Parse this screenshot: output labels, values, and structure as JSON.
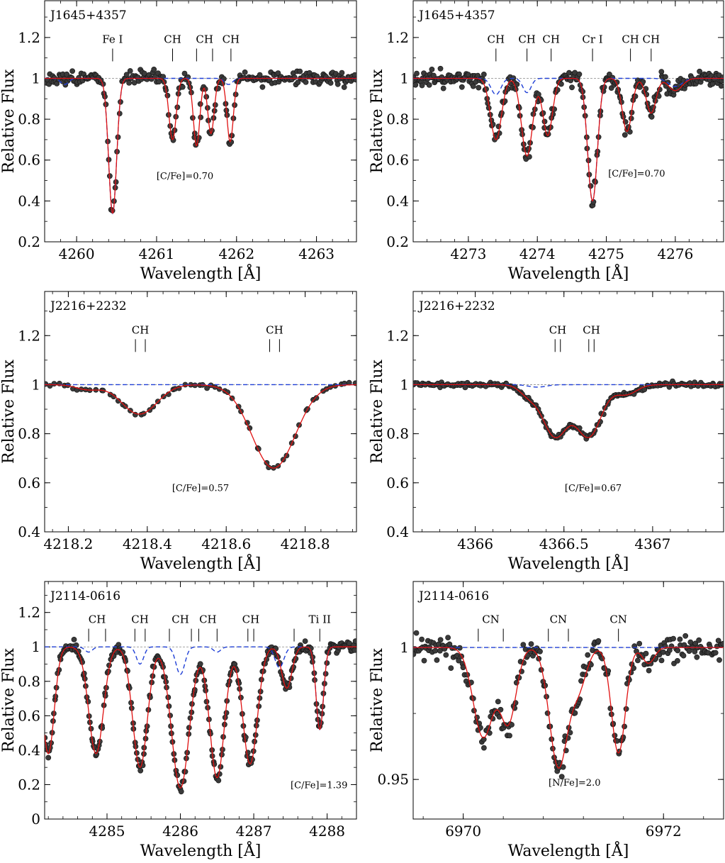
{
  "chart_data": [
    {
      "type": "line",
      "star": "J1645+4357",
      "annotation": "[C/Fe]=0.70",
      "xlabel": "Wavelength [Å]",
      "ylabel": "Relative Flux",
      "xlim": [
        4259.6,
        4263.5
      ],
      "ylim": [
        0.2,
        1.38
      ],
      "xticks": [
        4260,
        4261,
        4262,
        4263
      ],
      "xtick_labels": [
        "4260",
        "4261",
        "4262",
        "4263"
      ],
      "yticks": [
        0.2,
        0.4,
        0.6,
        0.8,
        1.0,
        1.2
      ],
      "ytick_labels": [
        "0.2",
        "0.4",
        "0.6",
        "0.8",
        "1",
        "1.2"
      ],
      "line_ids": [
        {
          "label": "Fe I",
          "marks": [
            4260.45
          ]
        },
        {
          "label": "CH",
          "marks": [
            4261.2
          ]
        },
        {
          "label": "CH",
          "marks": [
            4261.5,
            4261.7
          ]
        },
        {
          "label": "CH",
          "marks": [
            4261.93
          ]
        }
      ],
      "features": [
        {
          "c": 4260.45,
          "d": 0.66,
          "w": 0.05
        },
        {
          "c": 4261.2,
          "d": 0.3,
          "w": 0.045
        },
        {
          "c": 4261.5,
          "d": 0.33,
          "w": 0.04
        },
        {
          "c": 4261.68,
          "d": 0.27,
          "w": 0.04
        },
        {
          "c": 4261.92,
          "d": 0.31,
          "w": 0.04
        }
      ],
      "synth_blue": [
        {
          "c": 4260.45,
          "d": 0.66,
          "w": 0.05
        },
        {
          "c": 4259.85,
          "d": 0.03,
          "w": 0.05
        },
        {
          "c": 4261.9,
          "d": 0.03,
          "w": 0.05
        }
      ],
      "obs": {
        "seed": 11,
        "scatter": 0.045,
        "n": 260
      }
    },
    {
      "type": "line",
      "star": "J1645+4357",
      "annotation": "[C/Fe]=0.70",
      "xlabel": "Wavelength [Å]",
      "ylabel": "Relative Flux",
      "xlim": [
        4272.2,
        4276.7
      ],
      "ylim": [
        0.2,
        1.38
      ],
      "xticks": [
        4273,
        4274,
        4275,
        4276
      ],
      "xtick_labels": [
        "4273",
        "4274",
        "4275",
        "4276"
      ],
      "yticks": [
        0.2,
        0.4,
        0.6,
        0.8,
        1.0,
        1.2
      ],
      "ytick_labels": [
        "0.2",
        "0.4",
        "0.6",
        "0.8",
        "1",
        "1.2"
      ],
      "line_ids": [
        {
          "label": "CH",
          "marks": [
            4273.4
          ]
        },
        {
          "label": "CH",
          "marks": [
            4273.85
          ]
        },
        {
          "label": "CH",
          "marks": [
            4274.2
          ]
        },
        {
          "label": "Cr I",
          "marks": [
            4274.8
          ]
        },
        {
          "label": "CH",
          "marks": [
            4275.35
          ]
        },
        {
          "label": "CH",
          "marks": [
            4275.65
          ]
        }
      ],
      "features": [
        {
          "c": 4273.4,
          "d": 0.3,
          "w": 0.08
        },
        {
          "c": 4273.85,
          "d": 0.38,
          "w": 0.08
        },
        {
          "c": 4274.15,
          "d": 0.28,
          "w": 0.07
        },
        {
          "c": 4274.8,
          "d": 0.6,
          "w": 0.07
        },
        {
          "c": 4275.3,
          "d": 0.26,
          "w": 0.07
        },
        {
          "c": 4275.65,
          "d": 0.17,
          "w": 0.07
        },
        {
          "c": 4276.0,
          "d": 0.06,
          "w": 0.1
        }
      ],
      "synth_blue": [
        {
          "c": 4274.8,
          "d": 0.6,
          "w": 0.07
        },
        {
          "c": 4273.4,
          "d": 0.08,
          "w": 0.07
        },
        {
          "c": 4273.85,
          "d": 0.07,
          "w": 0.06
        },
        {
          "c": 4276.0,
          "d": 0.04,
          "w": 0.1
        }
      ],
      "obs": {
        "seed": 23,
        "scatter": 0.05,
        "n": 300
      }
    },
    {
      "type": "line",
      "star": "J2216+2232",
      "annotation": "[C/Fe]=0.57",
      "xlabel": "Wavelength [Å]",
      "ylabel": "Relative Flux",
      "xlim": [
        4218.14,
        4218.93
      ],
      "ylim": [
        0.4,
        1.38
      ],
      "xticks": [
        4218.2,
        4218.4,
        4218.6,
        4218.8
      ],
      "xtick_labels": [
        "4218.2",
        "4218.4",
        "4218.6",
        "4218.8"
      ],
      "yticks": [
        0.4,
        0.6,
        0.8,
        1.0,
        1.2
      ],
      "ytick_labels": [
        "0.4",
        "0.6",
        "0.8",
        "1",
        "1.2"
      ],
      "line_ids": [
        {
          "label": "CH",
          "marks": [
            4218.37,
            4218.395
          ]
        },
        {
          "label": "CH",
          "marks": [
            4218.71,
            4218.735
          ]
        }
      ],
      "features": [
        {
          "c": 4218.38,
          "d": 0.12,
          "w": 0.045
        },
        {
          "c": 4218.72,
          "d": 0.34,
          "w": 0.055
        },
        {
          "c": 4218.25,
          "d": 0.02,
          "w": 0.03
        }
      ],
      "synth_blue": [],
      "obs": {
        "seed": 5,
        "scatter": 0.012,
        "n": 70
      }
    },
    {
      "type": "line",
      "star": "J2216+2232",
      "annotation": "[C/Fe]=0.67",
      "xlabel": "Wavelength [Å]",
      "ylabel": "Relative Flux",
      "xlim": [
        4365.65,
        4367.4
      ],
      "ylim": [
        0.4,
        1.38
      ],
      "xticks": [
        4366,
        4366.5,
        4367
      ],
      "xtick_labels": [
        "4366",
        "4366.5",
        "4367"
      ],
      "yticks": [
        0.4,
        0.6,
        0.8,
        1.0,
        1.2
      ],
      "ytick_labels": [
        "0.4",
        "0.6",
        "0.8",
        "1",
        "1.2"
      ],
      "line_ids": [
        {
          "label": "CH",
          "marks": [
            4366.45,
            4366.48
          ]
        },
        {
          "label": "CH",
          "marks": [
            4366.64,
            4366.67
          ]
        }
      ],
      "features": [
        {
          "c": 4366.45,
          "d": 0.21,
          "w": 0.07
        },
        {
          "c": 4366.64,
          "d": 0.21,
          "w": 0.07
        },
        {
          "c": 4366.3,
          "d": 0.04,
          "w": 0.05
        },
        {
          "c": 4366.85,
          "d": 0.04,
          "w": 0.06
        }
      ],
      "synth_blue": [
        {
          "c": 4366.35,
          "d": 0.01,
          "w": 0.05
        }
      ],
      "obs": {
        "seed": 41,
        "scatter": 0.012,
        "n": 180
      }
    },
    {
      "type": "line",
      "star": "J2114-0616",
      "annotation": "[C/Fe]=1.39",
      "xlabel": "Wavelength [Å]",
      "ylabel": "Relative Flux",
      "xlim": [
        4284.15,
        4288.4
      ],
      "ylim": [
        0.0,
        1.38
      ],
      "xticks": [
        4285,
        4286,
        4287,
        4288
      ],
      "xtick_labels": [
        "4285",
        "4286",
        "4287",
        "4288"
      ],
      "yticks": [
        0.0,
        0.2,
        0.4,
        0.6,
        0.8,
        1.0,
        1.2
      ],
      "ytick_labels": [
        "0",
        "0.2",
        "0.4",
        "0.6",
        "0.8",
        "1",
        "1.2"
      ],
      "line_ids": [
        {
          "label": "CH",
          "marks": [
            4284.75,
            4284.98
          ]
        },
        {
          "label": "CH",
          "marks": [
            4285.38,
            4285.52
          ]
        },
        {
          "label": "CH",
          "marks": [
            4285.85,
            4286.15
          ]
        },
        {
          "label": "CH",
          "marks": [
            4286.25,
            4286.5
          ]
        },
        {
          "label": "CH",
          "marks": [
            4286.92,
            4287.0
          ]
        },
        {
          "label": "",
          "marks": [
            4287.55
          ]
        },
        {
          "label": "Ti II",
          "marks": [
            4287.9
          ]
        }
      ],
      "features": [
        {
          "c": 4284.2,
          "d": 0.62,
          "w": 0.08
        },
        {
          "c": 4284.85,
          "d": 0.62,
          "w": 0.1
        },
        {
          "c": 4285.45,
          "d": 0.7,
          "w": 0.1
        },
        {
          "c": 4286.0,
          "d": 0.82,
          "w": 0.12
        },
        {
          "c": 4286.5,
          "d": 0.76,
          "w": 0.1
        },
        {
          "c": 4286.95,
          "d": 0.68,
          "w": 0.1
        },
        {
          "c": 4287.45,
          "d": 0.24,
          "w": 0.07
        },
        {
          "c": 4287.9,
          "d": 0.48,
          "w": 0.05
        }
      ],
      "synth_blue": [
        {
          "c": 4285.45,
          "d": 0.1,
          "w": 0.05
        },
        {
          "c": 4286.0,
          "d": 0.16,
          "w": 0.06
        },
        {
          "c": 4287.35,
          "d": 0.12,
          "w": 0.06
        },
        {
          "c": 4287.9,
          "d": 0.48,
          "w": 0.05
        },
        {
          "c": 4284.75,
          "d": 0.03,
          "w": 0.05
        },
        {
          "c": 4286.5,
          "d": 0.03,
          "w": 0.05
        }
      ],
      "obs": {
        "seed": 77,
        "scatter": 0.04,
        "n": 320
      }
    },
    {
      "type": "line",
      "star": "J2114-0616",
      "annotation": "[N/Fe]=2.0",
      "xlabel": "Wavelength [Å]",
      "ylabel": "Relative Flux",
      "xlim": [
        6969.5,
        6972.6
      ],
      "ylim": [
        0.935,
        1.025
      ],
      "xticks": [
        6970,
        6972
      ],
      "xtick_labels": [
        "6970",
        "6972"
      ],
      "yticks": [
        0.95,
        1.0
      ],
      "ytick_labels": [
        "0.95",
        "1"
      ],
      "line_ids": [
        {
          "label": "CN",
          "marks": [
            6970.15,
            6970.4
          ]
        },
        {
          "label": "CN",
          "marks": [
            6970.85,
            6971.05
          ]
        },
        {
          "label": "CN",
          "marks": [
            6971.55
          ]
        }
      ],
      "features": [
        {
          "c": 6970.2,
          "d": 0.034,
          "w": 0.1
        },
        {
          "c": 6970.45,
          "d": 0.028,
          "w": 0.08
        },
        {
          "c": 6970.95,
          "d": 0.045,
          "w": 0.09
        },
        {
          "c": 6971.15,
          "d": 0.015,
          "w": 0.08
        },
        {
          "c": 6971.55,
          "d": 0.04,
          "w": 0.07
        },
        {
          "c": 6971.85,
          "d": 0.006,
          "w": 0.06
        }
      ],
      "synth_blue": [],
      "obs": {
        "seed": 99,
        "scatter": 0.006,
        "n": 250
      }
    }
  ]
}
